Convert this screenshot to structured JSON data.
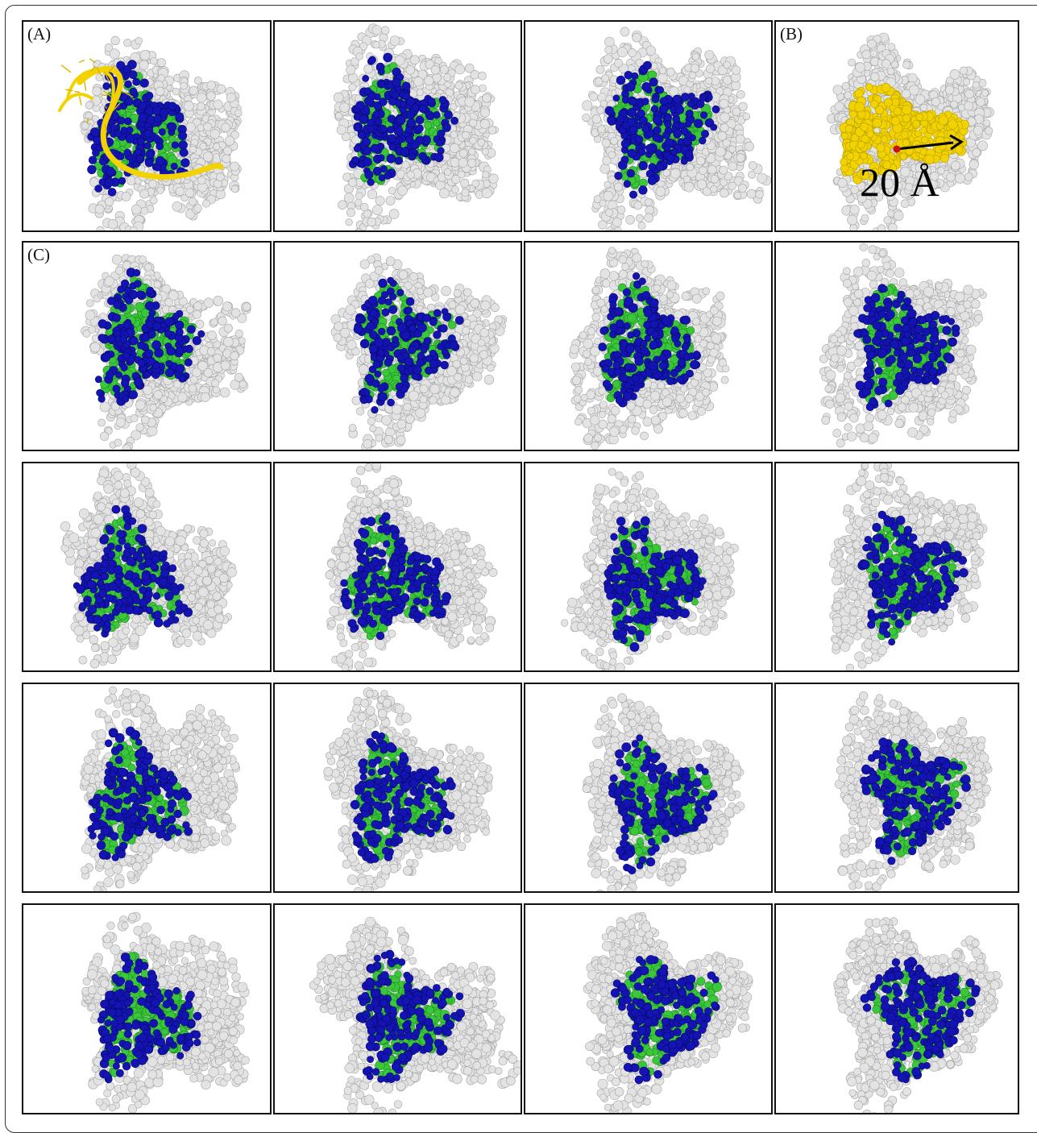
{
  "figure": {
    "label_a": "(A)",
    "label_b": "(B)",
    "label_c": "(C)",
    "scale_bar": "20 Å"
  },
  "colors": {
    "protein": "#e3e3e3",
    "protein_edge": "#a5a5a5",
    "site_blue": "#1414b4",
    "site_green": "#3ac83a",
    "ligand_yellow": "#f2d200",
    "arrow": "#000000",
    "origin_dot": "#cc1111"
  },
  "panels": [
    {
      "id": "a1",
      "label": "(A)",
      "ligand": true
    },
    {
      "id": "a2"
    },
    {
      "id": "a3"
    },
    {
      "id": "b",
      "label": "(B)",
      "highlight": "yellow",
      "scale": true
    },
    {
      "id": "c1",
      "label": "(C)"
    },
    {
      "id": "c2"
    },
    {
      "id": "c3"
    },
    {
      "id": "c4"
    },
    {
      "id": "c5"
    },
    {
      "id": "c6"
    },
    {
      "id": "c7"
    },
    {
      "id": "c8"
    },
    {
      "id": "c9"
    },
    {
      "id": "c10"
    },
    {
      "id": "c11"
    },
    {
      "id": "c12"
    },
    {
      "id": "c13"
    },
    {
      "id": "c14"
    },
    {
      "id": "c15"
    },
    {
      "id": "c16"
    }
  ]
}
